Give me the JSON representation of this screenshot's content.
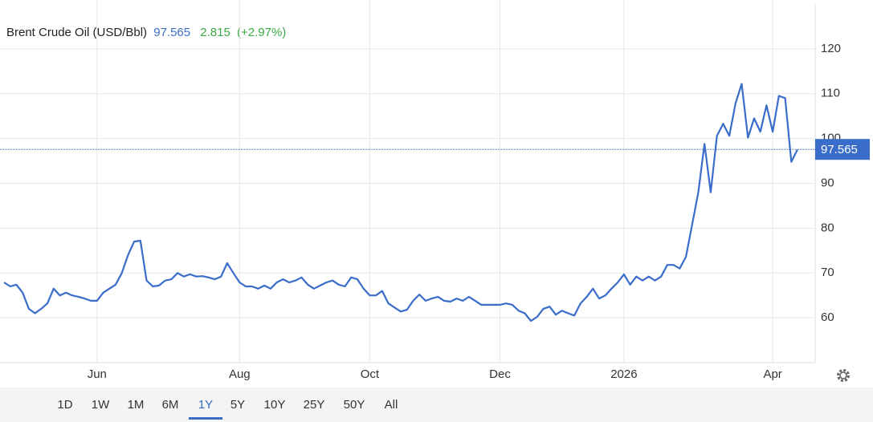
{
  "chart_data": {
    "type": "line",
    "title": "Brent Crude Oil (USD/Bbl)",
    "change": 2.815,
    "change_percent_label": "(+2.97%)",
    "series": [
      {
        "name": "Brent Crude Oil",
        "color": "#3a6cc9",
        "values": [
          67.9,
          67,
          67.4,
          65.6,
          62,
          61,
          62,
          63.2,
          66.5,
          65,
          65.6,
          65,
          64.7,
          64.3,
          63.8,
          63.8,
          65.6,
          66.5,
          67.4,
          70,
          74,
          77,
          77.2,
          68.3,
          67,
          67.2,
          68.3,
          68.6,
          70,
          69.2,
          69.7,
          69.2,
          69.3,
          69,
          68.6,
          69.2,
          72.2,
          70,
          67.9,
          67,
          67,
          66.5,
          67.2,
          66.5,
          67.9,
          68.6,
          67.9,
          68.3,
          69,
          67.4,
          66.5,
          67.2,
          67.9,
          68.3,
          67.4,
          67,
          69,
          68.6,
          66.5,
          65,
          65,
          66,
          63.2,
          62.3,
          61.4,
          61.8,
          63.8,
          65.2,
          63.8,
          64.3,
          64.7,
          63.8,
          63.6,
          64.3,
          63.8,
          64.7,
          63.8,
          62.9,
          62.9,
          62.9,
          62.9,
          63.2,
          62.9,
          61.6,
          61,
          59.3,
          60.2,
          62,
          62.5,
          60.7,
          61.6,
          61,
          60.5,
          63.2,
          64.7,
          66.5,
          64.3,
          65,
          66.5,
          67.9,
          69.7,
          67.4,
          69.2,
          68.3,
          69.2,
          68.3,
          69.2,
          71.8,
          71.8,
          71,
          73.6,
          80.8,
          88,
          98.8,
          88,
          100.6,
          103.3,
          100.6,
          107.8,
          112.2,
          100.2,
          104.5,
          101.5,
          107.4,
          101.5,
          109.5,
          109,
          94.8,
          97.565
        ]
      }
    ],
    "xticks": [
      {
        "value": 15,
        "label": "Jun"
      },
      {
        "value": 38,
        "label": "Aug"
      },
      {
        "value": 59,
        "label": "Oct"
      },
      {
        "value": 80,
        "label": "Dec"
      },
      {
        "value": 100,
        "label": "2026"
      },
      {
        "value": 124,
        "label": "Apr"
      }
    ],
    "ylim": [
      50,
      130
    ],
    "yticks": [
      60,
      70,
      80,
      90,
      100,
      110,
      120
    ],
    "grid": true
  },
  "range_buttons": [
    "1D",
    "1W",
    "1M",
    "6M",
    "1Y",
    "5Y",
    "10Y",
    "25Y",
    "50Y",
    "All"
  ],
  "selected_range": 4
}
